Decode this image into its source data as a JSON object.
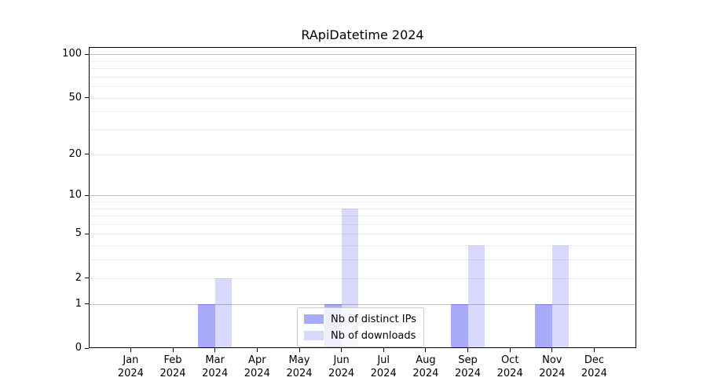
{
  "chart_data": {
    "type": "bar",
    "title": "RApiDatetime 2024",
    "categories": [
      "Jan",
      "Feb",
      "Mar",
      "Apr",
      "May",
      "Jun",
      "Jul",
      "Aug",
      "Sep",
      "Oct",
      "Nov",
      "Dec"
    ],
    "category_year": "2024",
    "series": [
      {
        "name": "Nb of distinct IPs",
        "values": [
          0,
          0,
          1,
          0,
          0,
          1,
          0,
          0,
          1,
          0,
          1,
          0
        ],
        "color": "#0000f0",
        "alpha": 0.335,
        "effective_hex_on_white": "#aaaaf9"
      },
      {
        "name": "Nb of downloads",
        "values": [
          0,
          0,
          2,
          0,
          0,
          8,
          0,
          0,
          4,
          0,
          4,
          0
        ],
        "color": "#0000f0",
        "alpha": 0.15,
        "effective_hex_on_white": "#d9d9fd"
      }
    ],
    "xlabel": "",
    "ylabel": "",
    "y_axis": {
      "scale": "log1p",
      "tick_labels": [
        "0",
        "1",
        "2",
        "5",
        "10",
        "20",
        "50",
        "100"
      ],
      "tick_values": [
        0,
        1,
        2,
        5,
        10,
        20,
        50,
        100
      ],
      "major_gridlines": [
        1,
        10,
        100
      ],
      "minor_gridlines": [
        2,
        3,
        4,
        5,
        6,
        7,
        8,
        9,
        20,
        30,
        40,
        50,
        60,
        70,
        80,
        90
      ],
      "ylim": [
        0,
        113
      ]
    },
    "grid": {
      "major_color": "#c2c2c2",
      "minor_color": "#ebebeb",
      "on": true
    },
    "legend": {
      "entries": [
        "Nb of distinct IPs",
        "Nb of downloads"
      ],
      "position": "lower center, inside plot",
      "frame_border_color": "#cccccc"
    },
    "spine_color": "#000000",
    "background_color": "#ffffff"
  }
}
